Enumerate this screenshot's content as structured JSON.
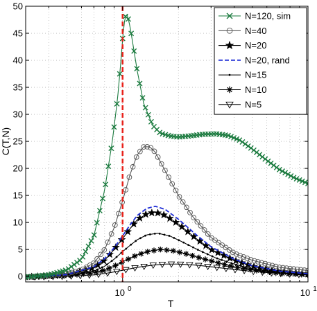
{
  "chart_data": {
    "type": "line",
    "xlabel": "T",
    "ylabel": "C(T,N)",
    "xscale": "log",
    "xlim": [
      0.3,
      10
    ],
    "ylim": [
      -1,
      50
    ],
    "grid": true,
    "legend_position": "top-right",
    "x_ticks": [
      {
        "value": 1,
        "label": "10",
        "exp": "0"
      },
      {
        "value": 10,
        "label": "10",
        "exp": "1"
      }
    ],
    "y_ticks": [
      0,
      5,
      10,
      15,
      20,
      25,
      30,
      35,
      40,
      45,
      50
    ],
    "vertical_line": {
      "x": 1.0,
      "color": "#e8221b"
    },
    "series": [
      {
        "name": "N=120, sim",
        "color": "#1a7a3e",
        "marker": "x",
        "dash": false,
        "peak_T": 1.05,
        "peak_C": 48.8
      },
      {
        "name": "N=40",
        "color": "#555555",
        "marker": "circle",
        "dash": false,
        "peak_T": 1.35,
        "peak_C": 24.2
      },
      {
        "name": "N=20",
        "color": "#000000",
        "marker": "star",
        "dash": false,
        "peak_T": 1.48,
        "peak_C": 11.9
      },
      {
        "name": "N=20, rand",
        "color": "#1d2cd6",
        "marker": "none",
        "dash": true,
        "peak_T": 1.5,
        "peak_C": 13.0
      },
      {
        "name": "N=15",
        "color": "#000000",
        "marker": "dot",
        "dash": false,
        "peak_T": 1.55,
        "peak_C": 8.0
      },
      {
        "name": "N=10",
        "color": "#000000",
        "marker": "asterisk",
        "dash": false,
        "peak_T": 1.6,
        "peak_C": 5.0
      },
      {
        "name": "N=5",
        "color": "#000000",
        "marker": "triangle-down",
        "dash": false,
        "peak_T": 1.7,
        "peak_C": 2.3
      }
    ],
    "curves": {
      "N=120, sim": [
        [
          0.3,
          -0.1
        ],
        [
          0.4,
          0.3
        ],
        [
          0.5,
          1.2
        ],
        [
          0.6,
          3.2
        ],
        [
          0.7,
          7.5
        ],
        [
          0.8,
          16
        ],
        [
          0.88,
          25
        ],
        [
          0.94,
          33
        ],
        [
          0.98,
          40
        ],
        [
          1.0,
          44
        ],
        [
          1.03,
          48
        ],
        [
          1.06,
          48.5
        ],
        [
          1.1,
          46
        ],
        [
          1.2,
          38
        ],
        [
          1.3,
          32
        ],
        [
          1.45,
          28
        ],
        [
          1.6,
          26.5
        ],
        [
          1.8,
          26
        ],
        [
          2.0,
          25.8
        ],
        [
          2.3,
          26
        ],
        [
          2.7,
          26.3
        ],
        [
          3.2,
          26.4
        ],
        [
          3.7,
          26.1
        ],
        [
          4.3,
          25.2
        ],
        [
          5.0,
          23.6
        ],
        [
          6.0,
          21.5
        ],
        [
          7.0,
          19.8
        ],
        [
          8.5,
          18.2
        ],
        [
          10,
          17.2
        ]
      ],
      "N=40": [
        [
          0.3,
          -0.1
        ],
        [
          0.5,
          0.5
        ],
        [
          0.6,
          1.2
        ],
        [
          0.7,
          2.5
        ],
        [
          0.8,
          5
        ],
        [
          0.9,
          9
        ],
        [
          1.0,
          14
        ],
        [
          1.1,
          19
        ],
        [
          1.2,
          22.5
        ],
        [
          1.3,
          24
        ],
        [
          1.4,
          24
        ],
        [
          1.5,
          23
        ],
        [
          1.7,
          19.5
        ],
        [
          2.0,
          15
        ],
        [
          2.4,
          11
        ],
        [
          3.0,
          7.2
        ],
        [
          4.0,
          4.3
        ],
        [
          5.0,
          3.0
        ],
        [
          7.0,
          1.7
        ],
        [
          10,
          1.1
        ]
      ],
      "N=20": [
        [
          0.3,
          -0.1
        ],
        [
          0.5,
          0.3
        ],
        [
          0.7,
          1.6
        ],
        [
          0.8,
          3.0
        ],
        [
          0.9,
          5.0
        ],
        [
          1.0,
          7.0
        ],
        [
          1.1,
          8.9
        ],
        [
          1.2,
          10.5
        ],
        [
          1.35,
          11.6
        ],
        [
          1.5,
          11.9
        ],
        [
          1.7,
          11.3
        ],
        [
          2.0,
          9.7
        ],
        [
          2.5,
          7.0
        ],
        [
          3.0,
          5.0
        ],
        [
          4.0,
          3.0
        ],
        [
          5.0,
          1.9
        ],
        [
          7.0,
          0.9
        ],
        [
          10,
          0.45
        ]
      ],
      "N=20, rand": [
        [
          0.3,
          -0.1
        ],
        [
          0.5,
          0.35
        ],
        [
          0.7,
          1.8
        ],
        [
          0.8,
          3.3
        ],
        [
          0.9,
          5.3
        ],
        [
          1.0,
          7.5
        ],
        [
          1.1,
          9.6
        ],
        [
          1.2,
          11.3
        ],
        [
          1.35,
          12.6
        ],
        [
          1.5,
          13.0
        ],
        [
          1.7,
          12.4
        ],
        [
          2.0,
          10.6
        ],
        [
          2.5,
          7.7
        ],
        [
          3.0,
          5.5
        ],
        [
          4.0,
          3.2
        ],
        [
          5.0,
          2.0
        ],
        [
          7.0,
          1.0
        ],
        [
          10,
          0.5
        ]
      ],
      "N=15": [
        [
          0.3,
          -0.1
        ],
        [
          0.5,
          0.2
        ],
        [
          0.7,
          1.0
        ],
        [
          0.8,
          1.9
        ],
        [
          0.9,
          3.2
        ],
        [
          1.0,
          4.6
        ],
        [
          1.1,
          5.8
        ],
        [
          1.2,
          6.8
        ],
        [
          1.35,
          7.7
        ],
        [
          1.55,
          8.0
        ],
        [
          1.8,
          7.5
        ],
        [
          2.1,
          6.4
        ],
        [
          2.6,
          4.8
        ],
        [
          3.2,
          3.4
        ],
        [
          4.0,
          2.3
        ],
        [
          5.0,
          1.4
        ],
        [
          7.0,
          0.7
        ],
        [
          10,
          0.3
        ]
      ],
      "N=10": [
        [
          0.3,
          -0.1
        ],
        [
          0.5,
          0.15
        ],
        [
          0.7,
          0.7
        ],
        [
          0.8,
          1.2
        ],
        [
          0.9,
          1.9
        ],
        [
          1.0,
          2.7
        ],
        [
          1.1,
          3.4
        ],
        [
          1.2,
          4.0
        ],
        [
          1.4,
          4.7
        ],
        [
          1.6,
          5.0
        ],
        [
          1.85,
          4.8
        ],
        [
          2.2,
          4.2
        ],
        [
          2.7,
          3.3
        ],
        [
          3.3,
          2.5
        ],
        [
          4.0,
          1.8
        ],
        [
          5.0,
          1.2
        ],
        [
          7.0,
          0.6
        ],
        [
          10,
          0.3
        ]
      ],
      "N=5": [
        [
          0.3,
          -0.1
        ],
        [
          0.5,
          0.05
        ],
        [
          0.7,
          0.3
        ],
        [
          0.8,
          0.55
        ],
        [
          0.9,
          0.85
        ],
        [
          1.0,
          1.15
        ],
        [
          1.2,
          1.7
        ],
        [
          1.45,
          2.1
        ],
        [
          1.7,
          2.3
        ],
        [
          2.0,
          2.3
        ],
        [
          2.5,
          2.1
        ],
        [
          3.0,
          1.8
        ],
        [
          4.0,
          1.3
        ],
        [
          5.0,
          0.95
        ],
        [
          7.0,
          0.55
        ],
        [
          10,
          0.3
        ]
      ]
    }
  }
}
